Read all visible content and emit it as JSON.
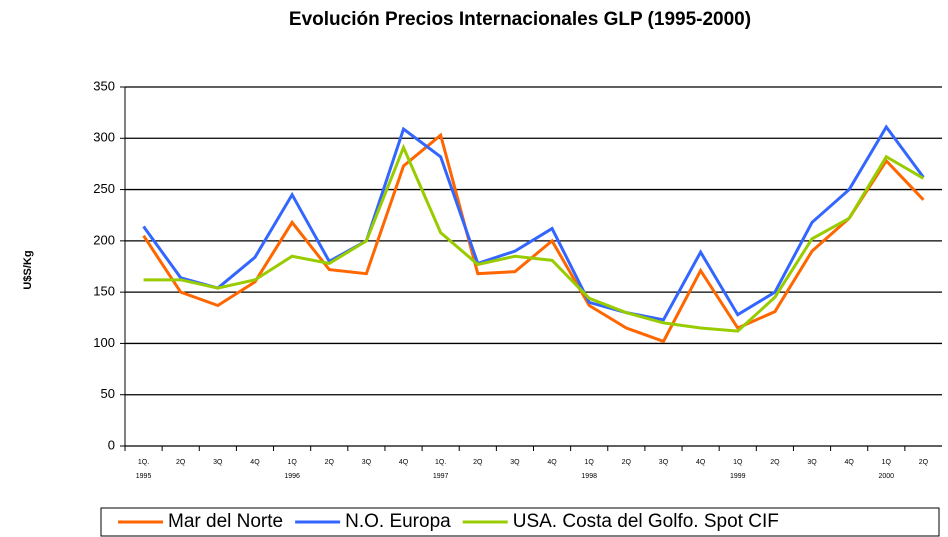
{
  "chart_data": {
    "type": "line",
    "title": "Evolución Precios Internacionales GLP (1995-2000)",
    "y_label": "U$S/Kg",
    "categories": [
      "1Q.",
      "2Q",
      "3Q",
      "4Q",
      "1Q",
      "2Q",
      "3Q",
      "4Q",
      "1Q.",
      "2Q",
      "3Q",
      "4Q",
      "1Q",
      "2Q",
      "3Q",
      "4Q",
      "1Q",
      "2Q",
      "3Q",
      "4Q",
      "1Q",
      "2Q"
    ],
    "category_years": [
      "1995",
      null,
      null,
      null,
      "1996",
      null,
      null,
      null,
      "1997",
      null,
      null,
      null,
      "1998",
      null,
      null,
      null,
      "1999",
      null,
      null,
      null,
      "2000",
      null
    ],
    "series": [
      {
        "name": "Mar del Norte",
        "color": "#ff6600",
        "values": [
          205,
          150,
          137,
          160,
          218,
          172,
          168,
          273,
          303,
          168,
          170,
          200,
          137,
          115,
          102,
          171,
          115,
          131,
          190,
          222,
          278,
          240
        ]
      },
      {
        "name": "N.O. Europa",
        "color": "#3366ff",
        "values": [
          214,
          164,
          154,
          184,
          245,
          180,
          200,
          309,
          282,
          178,
          190,
          212,
          140,
          130,
          123,
          189,
          128,
          150,
          218,
          250,
          311,
          262
        ]
      },
      {
        "name": "USA. Costa del Golfo. Spot CIF",
        "color": "#99cc00",
        "values": [
          162,
          162,
          154,
          162,
          185,
          178,
          200,
          291,
          208,
          177,
          185,
          181,
          144,
          130,
          120,
          115,
          112,
          145,
          202,
          222,
          282,
          261
        ]
      }
    ],
    "ylim": [
      0,
      350
    ],
    "yticks": [
      0,
      50,
      100,
      150,
      200,
      250,
      300,
      350
    ],
    "grid": true,
    "legend": "bottom"
  }
}
